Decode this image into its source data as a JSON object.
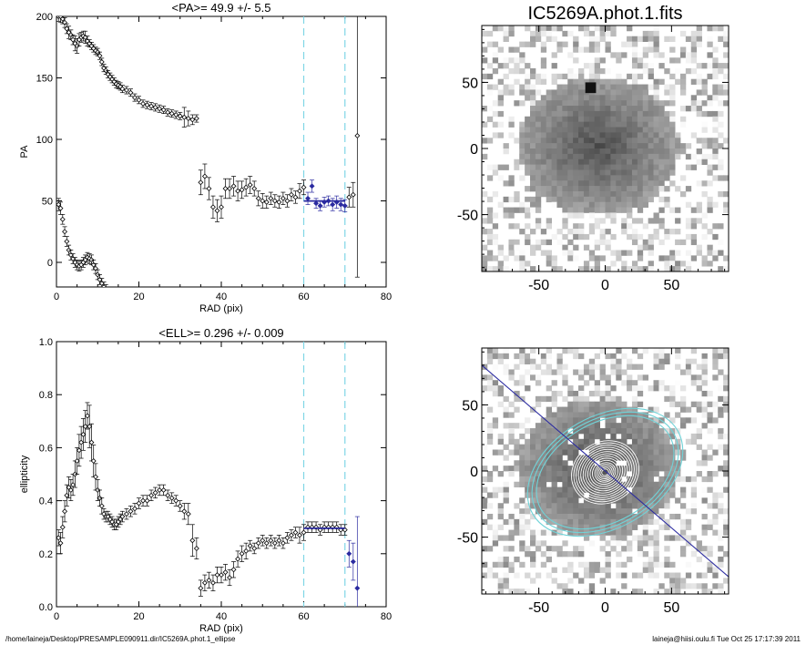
{
  "footer": {
    "path": "/home/laineja/Desktop/PRESAMPLE090911.dir/IC5269A.phot.1_ellipse",
    "stamp": "laineja@hiisi.oulu.fi  Tue Oct 25 17:17:39 2011"
  },
  "colors": {
    "axes": "#000000",
    "data": "#000000",
    "fit": "#2a2aa0",
    "marker_lines": "#7fd6e6",
    "contour_white": "#ffffff",
    "contour_cyan": "#6fd3d8"
  },
  "chart_data": [
    {
      "type": "scatter",
      "title": "<PA>=  49.9 +/-   5.5",
      "xlabel": "RAD (pix)",
      "ylabel": "PA",
      "xlim": [
        0,
        80
      ],
      "ylim": [
        -20,
        200
      ],
      "xticks": [
        "0",
        "20",
        "40",
        "60",
        "80"
      ],
      "yticks": [
        "0",
        "50",
        "100",
        "150",
        "200"
      ],
      "vlines": [
        60,
        70
      ],
      "fit": {
        "x": [
          60,
          70
        ],
        "y": 49.9
      },
      "series": [
        {
          "x": [
            0.5,
            1,
            1.5,
            2,
            2.5,
            3,
            3.5,
            4,
            4.5,
            5,
            5.5,
            6,
            6.5,
            7,
            7.5,
            8,
            8.5,
            9,
            9.5,
            10,
            10.5,
            11,
            11.5,
            12,
            12.5,
            13,
            13.5,
            14,
            14.5,
            15,
            15.5,
            16,
            17,
            18,
            19,
            20,
            21,
            22,
            23,
            24,
            25,
            26,
            27,
            28,
            29,
            30,
            31,
            32,
            33,
            34
          ],
          "y": [
            200,
            200,
            198,
            195,
            190,
            187,
            185,
            181,
            178,
            176,
            181,
            183,
            184,
            183,
            180,
            178,
            176,
            174,
            172,
            171,
            168,
            163,
            158,
            156,
            153,
            151,
            149,
            147,
            145,
            144,
            143,
            141,
            140,
            138,
            134,
            132,
            129,
            128,
            127,
            126,
            125,
            124,
            122,
            121,
            120,
            119,
            118,
            117,
            116,
            117
          ],
          "err": [
            4,
            5,
            4,
            4,
            4,
            5,
            4,
            4,
            6,
            6,
            5,
            4,
            4,
            5,
            4,
            3,
            3,
            3,
            3,
            3,
            3,
            3,
            3,
            3,
            3,
            3,
            3,
            3,
            3,
            3,
            3,
            3,
            3,
            3,
            3,
            3,
            3,
            3,
            3,
            3,
            3,
            3,
            3,
            3,
            3,
            3,
            8,
            6,
            4,
            3
          ]
        },
        {
          "x": [
            0.5,
            1,
            1.5,
            2,
            2.5,
            3,
            3.5,
            4,
            4.5,
            5,
            5.5,
            6,
            6.5,
            7,
            7.5,
            8,
            8.5,
            9,
            9.5,
            10,
            10.5,
            11,
            11.5,
            12
          ],
          "y": [
            47,
            44,
            35,
            25,
            17,
            10,
            6,
            3,
            0,
            -2,
            -3,
            -2,
            0,
            2,
            4,
            3,
            2,
            -2,
            -5,
            -10,
            -14,
            -17,
            -20,
            -22
          ],
          "err": [
            5,
            5,
            4,
            4,
            4,
            4,
            4,
            4,
            4,
            4,
            4,
            4,
            4,
            4,
            4,
            4,
            4,
            4,
            4,
            4,
            4,
            4,
            4,
            4
          ]
        },
        {
          "x": [
            35,
            36,
            37,
            38,
            39,
            40,
            41,
            42,
            43,
            44,
            45,
            46,
            47,
            48,
            49,
            50,
            51,
            52,
            53,
            54,
            55,
            56,
            57,
            58,
            59,
            60
          ],
          "y": [
            65,
            70,
            60,
            45,
            42,
            45,
            60,
            60,
            62,
            58,
            59,
            61,
            63,
            60,
            52,
            50,
            49,
            52,
            50,
            49,
            52,
            50,
            55,
            53,
            58,
            61
          ],
          "err": [
            10,
            10,
            9,
            9,
            9,
            9,
            8,
            8,
            8,
            8,
            7,
            7,
            7,
            6,
            6,
            6,
            5,
            5,
            5,
            5,
            5,
            5,
            5,
            5,
            6,
            6
          ]
        },
        {
          "x": [
            61,
            62,
            63,
            64,
            65,
            66,
            67,
            68,
            69,
            70
          ],
          "y": [
            52,
            62,
            48,
            46,
            49,
            50,
            47,
            49,
            47,
            46
          ],
          "err": [
            5,
            5,
            4,
            4,
            4,
            4,
            5,
            5,
            5,
            5
          ]
        },
        {
          "x": [
            71,
            72,
            73
          ],
          "y": [
            53,
            55,
            103
          ],
          "err": [
            8,
            10,
            115
          ]
        }
      ]
    },
    {
      "type": "scatter",
      "title": "<ELL>= 0.296 +/-  0.009",
      "xlabel": "RAD (pix)",
      "ylabel": "ellipticity",
      "xlim": [
        0,
        80
      ],
      "ylim": [
        0,
        1
      ],
      "xticks": [
        "0",
        "20",
        "40",
        "60",
        "80"
      ],
      "yticks": [
        "0.0",
        "0.2",
        "0.4",
        "0.6",
        "0.8",
        "1.0"
      ],
      "vlines": [
        60,
        70
      ],
      "fit": {
        "x": [
          60,
          70
        ],
        "y": 0.296
      },
      "series": [
        {
          "x": [
            0.5,
            1,
            1.5,
            2,
            2.5,
            3,
            3.5,
            4,
            4.5,
            5,
            5.5,
            6,
            6.5,
            7,
            7.5,
            8,
            8.5,
            9,
            9.5,
            10,
            10.5,
            11,
            11.5,
            12,
            12.5,
            13,
            13.5,
            14,
            14.5,
            15,
            15.5,
            16,
            17,
            18,
            19,
            20,
            21,
            22,
            23,
            24,
            25,
            26,
            27,
            28,
            29,
            30,
            31,
            32,
            33,
            34
          ],
          "y": [
            0.26,
            0.24,
            0.3,
            0.36,
            0.42,
            0.45,
            0.44,
            0.46,
            0.5,
            0.55,
            0.59,
            0.62,
            0.65,
            0.68,
            0.72,
            0.68,
            0.62,
            0.55,
            0.49,
            0.44,
            0.41,
            0.38,
            0.35,
            0.34,
            0.34,
            0.33,
            0.32,
            0.31,
            0.31,
            0.32,
            0.33,
            0.34,
            0.35,
            0.36,
            0.37,
            0.39,
            0.4,
            0.4,
            0.42,
            0.43,
            0.44,
            0.44,
            0.42,
            0.41,
            0.4,
            0.38,
            0.36,
            0.35,
            0.25,
            0.22
          ],
          "err": [
            0.03,
            0.04,
            0.04,
            0.04,
            0.04,
            0.04,
            0.04,
            0.04,
            0.05,
            0.05,
            0.06,
            0.06,
            0.06,
            0.06,
            0.05,
            0.08,
            0.07,
            0.06,
            0.05,
            0.04,
            0.03,
            0.03,
            0.02,
            0.02,
            0.02,
            0.02,
            0.02,
            0.02,
            0.02,
            0.02,
            0.02,
            0.02,
            0.02,
            0.02,
            0.02,
            0.02,
            0.02,
            0.02,
            0.02,
            0.02,
            0.02,
            0.02,
            0.02,
            0.02,
            0.02,
            0.02,
            0.03,
            0.04,
            0.06,
            0.04
          ]
        },
        {
          "x": [
            35,
            36,
            37,
            38,
            39,
            40,
            41,
            42,
            43,
            44,
            45,
            46,
            47,
            48,
            49,
            50,
            51,
            52,
            53,
            54,
            55,
            56,
            57,
            58,
            59,
            60
          ],
          "y": [
            0.07,
            0.09,
            0.1,
            0.09,
            0.12,
            0.12,
            0.13,
            0.11,
            0.14,
            0.18,
            0.2,
            0.21,
            0.23,
            0.22,
            0.24,
            0.25,
            0.24,
            0.25,
            0.24,
            0.25,
            0.24,
            0.26,
            0.27,
            0.28,
            0.27,
            0.28
          ],
          "err": [
            0.03,
            0.03,
            0.03,
            0.03,
            0.03,
            0.03,
            0.03,
            0.03,
            0.03,
            0.03,
            0.03,
            0.03,
            0.02,
            0.02,
            0.02,
            0.02,
            0.02,
            0.02,
            0.02,
            0.02,
            0.02,
            0.02,
            0.02,
            0.02,
            0.03,
            0.03
          ]
        },
        {
          "x": [
            61,
            62,
            63,
            64,
            65,
            66,
            67,
            68,
            69,
            70
          ],
          "y": [
            0.3,
            0.3,
            0.3,
            0.29,
            0.3,
            0.3,
            0.3,
            0.3,
            0.29,
            0.29
          ],
          "err": [
            0.02,
            0.02,
            0.02,
            0.02,
            0.02,
            0.02,
            0.02,
            0.02,
            0.02,
            0.02
          ]
        },
        {
          "x": [
            71,
            72,
            73
          ],
          "y": [
            0.2,
            0.17,
            0.07
          ],
          "err": [
            0.05,
            0.07,
            0.27
          ]
        }
      ]
    },
    {
      "type": "heatmap",
      "title": "IC5269A.phot.1.fits",
      "xlim": [
        -93,
        93
      ],
      "ylim": [
        -93,
        93
      ],
      "xticks": [
        "-50",
        "0",
        "50"
      ],
      "yticks": [
        "-50",
        "0",
        "50"
      ],
      "galaxy": {
        "center": [
          -5,
          2
        ],
        "rx": 60,
        "ry": 52
      }
    },
    {
      "type": "heatmap",
      "xlim": [
        -93,
        93
      ],
      "ylim": [
        -93,
        93
      ],
      "xticks": [
        "-50",
        "0",
        "50"
      ],
      "yticks": [
        "-50",
        "0",
        "50"
      ],
      "galaxy": {
        "center": [
          -5,
          2
        ],
        "rx": 60,
        "ry": 52
      },
      "pa_line": {
        "from": [
          -93,
          80
        ],
        "to": [
          93,
          -80
        ]
      },
      "contours": {
        "pa_deg": 49.9,
        "ellipticity": 0.296,
        "white_radii": [
          6,
          9,
          12,
          15,
          18,
          22,
          26,
          30,
          34,
          38,
          42,
          46,
          50,
          54,
          58
        ],
        "cyan_radii": [
          62,
          66,
          70
        ]
      }
    }
  ]
}
